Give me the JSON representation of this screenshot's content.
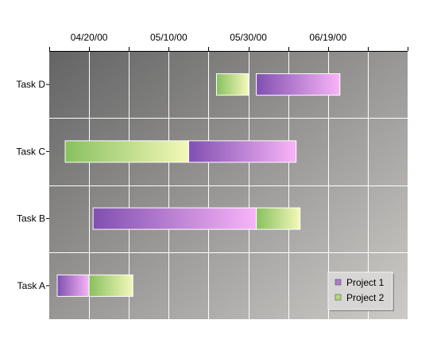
{
  "chart_data": {
    "type": "gantt",
    "x_axis": {
      "type": "date",
      "position": "top",
      "range": [
        "2000-04-10",
        "2000-07-09"
      ],
      "tick_labels": [
        "04/20/00",
        "05/10/00",
        "05/30/00",
        "06/19/00"
      ],
      "tick_dates": [
        "2000-04-20",
        "2000-05-10",
        "2000-05-30",
        "2000-06-19"
      ],
      "minor_tick_dates": [
        "2000-04-10",
        "2000-04-30",
        "2000-05-20",
        "2000-06-09",
        "2000-06-29",
        "2000-07-09"
      ]
    },
    "categories": [
      "Task D",
      "Task C",
      "Task B",
      "Task A"
    ],
    "series": [
      {
        "name": "Project 1",
        "color_start": "#8050b0",
        "color_end": "#f8b4f8",
        "bars": [
          {
            "category": "Task D",
            "start": "2000-06-01",
            "end": "2000-06-22"
          },
          {
            "category": "Task C",
            "start": "2000-05-15",
            "end": "2000-06-11"
          },
          {
            "category": "Task B",
            "start": "2000-04-21",
            "end": "2000-06-01"
          },
          {
            "category": "Task A",
            "start": "2000-04-12",
            "end": "2000-04-20"
          }
        ]
      },
      {
        "name": "Project 2",
        "color_start": "#88c060",
        "color_end": "#f4f8b8",
        "bars": [
          {
            "category": "Task D",
            "start": "2000-05-22",
            "end": "2000-05-30"
          },
          {
            "category": "Task C",
            "start": "2000-04-14",
            "end": "2000-05-15"
          },
          {
            "category": "Task B",
            "start": "2000-06-01",
            "end": "2000-06-12"
          },
          {
            "category": "Task A",
            "start": "2000-04-20",
            "end": "2000-05-01"
          }
        ]
      }
    ],
    "grid": true,
    "legend": {
      "position": "bottom-right",
      "entries": [
        "Project 1",
        "Project 2"
      ]
    },
    "plot_background": {
      "gradient_start": "#646464",
      "gradient_end": "#cdcac7"
    }
  }
}
